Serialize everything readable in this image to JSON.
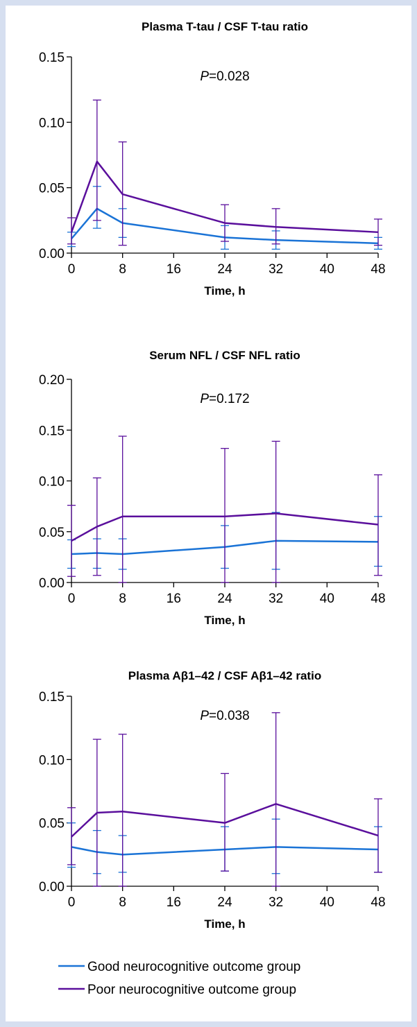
{
  "colors": {
    "good": "#1a73d6",
    "poor": "#5a0f9c",
    "axis": "#000000"
  },
  "legend": [
    {
      "key": "good",
      "label": "Good neurocognitive outcome group"
    },
    {
      "key": "poor",
      "label": "Poor neurocognitive outcome group"
    }
  ],
  "chart_data": [
    {
      "type": "line",
      "title": "Plasma T-tau / CSF T-tau ratio",
      "p_prefix": "P",
      "p_value": "=0.028",
      "xlabel": "Time, h",
      "ylabel": "",
      "xlim": [
        0,
        48
      ],
      "ylim": [
        0,
        0.15
      ],
      "x_ticks": [
        "0",
        "8",
        "16",
        "24",
        "32",
        "40",
        "48"
      ],
      "y_ticks": [
        "0.00",
        "0.05",
        "0.10",
        "0.15"
      ],
      "x": [
        0,
        4,
        8,
        24,
        32,
        48
      ],
      "series": [
        {
          "key": "good",
          "name": "Good neurocognitive outcome group",
          "values": [
            0.011,
            0.034,
            0.023,
            0.012,
            0.01,
            0.0075
          ],
          "err_low": [
            0.005,
            0.019,
            0.012,
            0.003,
            0.003,
            0.003
          ],
          "err_high": [
            0.016,
            0.051,
            0.034,
            0.021,
            0.017,
            0.012
          ]
        },
        {
          "key": "poor",
          "name": "Poor neurocognitive outcome group",
          "values": [
            0.016,
            0.07,
            0.045,
            0.023,
            0.02,
            0.016
          ],
          "err_low": [
            0.007,
            0.025,
            0.006,
            0.009,
            0.007,
            0.006
          ],
          "err_high": [
            0.027,
            0.117,
            0.085,
            0.037,
            0.034,
            0.026
          ]
        }
      ]
    },
    {
      "type": "line",
      "title": "Serum NFL / CSF NFL ratio",
      "p_prefix": "P",
      "p_value": "=0.172",
      "xlabel": "Time, h",
      "ylabel": "",
      "xlim": [
        0,
        48
      ],
      "ylim": [
        0,
        0.2
      ],
      "x_ticks": [
        "0",
        "8",
        "16",
        "24",
        "32",
        "40",
        "48"
      ],
      "y_ticks": [
        "0.00",
        "0.05",
        "0.10",
        "0.15",
        "0.20"
      ],
      "x": [
        0,
        4,
        8,
        24,
        32,
        48
      ],
      "series": [
        {
          "key": "good",
          "name": "Good neurocognitive outcome group",
          "values": [
            0.028,
            0.029,
            0.028,
            0.035,
            0.041,
            0.04
          ],
          "err_low": [
            0.014,
            0.014,
            0.013,
            0.014,
            0.013,
            0.016
          ],
          "err_high": [
            0.042,
            0.043,
            0.043,
            0.056,
            0.069,
            0.065
          ]
        },
        {
          "key": "poor",
          "name": "Poor neurocognitive outcome group",
          "values": [
            0.041,
            0.055,
            0.065,
            0.065,
            0.068,
            0.057
          ],
          "err_low": [
            0.006,
            0.007,
            0.0,
            0.0,
            0.0,
            0.007
          ],
          "err_high": [
            0.076,
            0.103,
            0.144,
            0.132,
            0.139,
            0.106
          ]
        }
      ]
    },
    {
      "type": "line",
      "title": "Plasma Aβ1–42 / CSF Aβ1–42 ratio",
      "p_prefix": "P",
      "p_value": "=0.038",
      "xlabel": "Time, h",
      "ylabel": "",
      "xlim": [
        0,
        48
      ],
      "ylim": [
        0,
        0.15
      ],
      "x_ticks": [
        "0",
        "8",
        "16",
        "24",
        "32",
        "40",
        "48"
      ],
      "y_ticks": [
        "0.00",
        "0.05",
        "0.10",
        "0.15"
      ],
      "x": [
        0,
        4,
        8,
        24,
        32,
        48
      ],
      "series": [
        {
          "key": "good",
          "name": "Good neurocognitive outcome group",
          "values": [
            0.031,
            0.027,
            0.025,
            0.029,
            0.031,
            0.029
          ],
          "err_low": [
            0.015,
            0.01,
            0.011,
            0.012,
            0.01,
            0.011
          ],
          "err_high": [
            0.05,
            0.044,
            0.04,
            0.047,
            0.053,
            0.047
          ]
        },
        {
          "key": "poor",
          "name": "Poor neurocognitive outcome group",
          "values": [
            0.039,
            0.058,
            0.059,
            0.05,
            0.065,
            0.04
          ],
          "err_low": [
            0.017,
            0.0,
            0.0,
            0.012,
            0.0,
            0.011
          ],
          "err_high": [
            0.062,
            0.116,
            0.12,
            0.089,
            0.137,
            0.069
          ]
        }
      ]
    }
  ]
}
